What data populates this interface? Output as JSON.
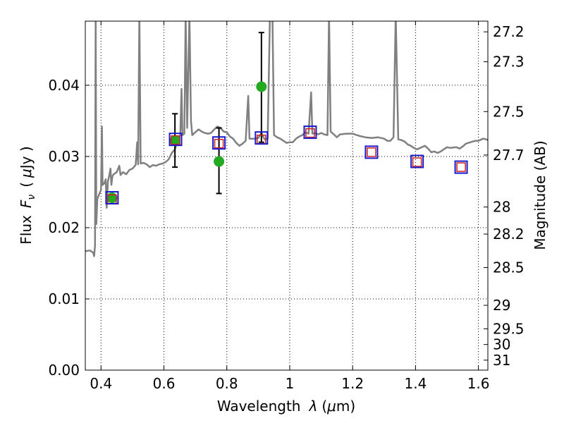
{
  "chart_data": {
    "type": "scatter",
    "xlabel": "Wavelength",
    "xlabel_symbol": "λ",
    "xlabel_unit_open": "(",
    "xlabel_unit_mu": "μ",
    "xlabel_unit_rest": "m)",
    "ylabel": "Flux",
    "ylabel_symbol": "F",
    "ylabel_sub": "ν",
    "ylabel_unit_open": "(",
    "ylabel_unit_mu": "μ",
    "ylabel_unit_rest": "Jy )",
    "y2label": "Magnitude (AB)",
    "xlim": [
      0.35,
      1.63
    ],
    "ylim": [
      0.0,
      0.049
    ],
    "grid": true,
    "grid_style": "dotted",
    "xticks": [
      0.4,
      0.6,
      0.8,
      1.0,
      1.2,
      1.4,
      1.6
    ],
    "xtick_labels": [
      "0.4",
      "0.6",
      "0.8",
      "1",
      "1.2",
      "1.4",
      "1.6"
    ],
    "yticks": [
      0.0,
      0.01,
      0.02,
      0.03,
      0.04
    ],
    "ytick_labels": [
      "0.00",
      "0.01",
      "0.02",
      "0.03",
      "0.04"
    ],
    "y2ticks": [
      {
        "label": "27.2",
        "flux": 0.0475
      },
      {
        "label": "27.3",
        "flux": 0.0433
      },
      {
        "label": "27.5",
        "flux": 0.0363
      },
      {
        "label": "27.7",
        "flux": 0.0302
      },
      {
        "label": "28",
        "flux": 0.0229
      },
      {
        "label": "28.2",
        "flux": 0.0191
      },
      {
        "label": "28.5",
        "flux": 0.0144
      },
      {
        "label": "29",
        "flux": 0.0091
      },
      {
        "label": "29.5",
        "flux": 0.0058
      },
      {
        "label": "30",
        "flux": 0.0036
      },
      {
        "label": "31",
        "flux": 0.0014
      }
    ],
    "series": [
      {
        "kind": "line",
        "color": "#808080",
        "points": [
          [
            0.35,
            0.0167
          ],
          [
            0.365,
            0.0168
          ],
          [
            0.375,
            0.0165
          ],
          [
            0.378,
            0.016
          ],
          [
            0.381,
            0.0175
          ],
          [
            0.383,
            0.05
          ],
          [
            0.385,
            0.0205
          ],
          [
            0.388,
            0.024
          ],
          [
            0.395,
            0.0248
          ],
          [
            0.4,
            0.0253
          ],
          [
            0.403,
            0.0342
          ],
          [
            0.405,
            0.026
          ],
          [
            0.41,
            0.0262
          ],
          [
            0.415,
            0.0268
          ],
          [
            0.418,
            0.0228
          ],
          [
            0.422,
            0.0265
          ],
          [
            0.426,
            0.0273
          ],
          [
            0.43,
            0.0283
          ],
          [
            0.433,
            0.026
          ],
          [
            0.436,
            0.0272
          ],
          [
            0.44,
            0.0275
          ],
          [
            0.45,
            0.0278
          ],
          [
            0.458,
            0.0287
          ],
          [
            0.462,
            0.0274
          ],
          [
            0.47,
            0.0278
          ],
          [
            0.48,
            0.0275
          ],
          [
            0.49,
            0.0281
          ],
          [
            0.5,
            0.0283
          ],
          [
            0.51,
            0.0288
          ],
          [
            0.515,
            0.032
          ],
          [
            0.518,
            0.0289
          ],
          [
            0.522,
            0.05
          ],
          [
            0.526,
            0.029
          ],
          [
            0.535,
            0.0291
          ],
          [
            0.545,
            0.0289
          ],
          [
            0.555,
            0.0285
          ],
          [
            0.565,
            0.0288
          ],
          [
            0.575,
            0.0287
          ],
          [
            0.585,
            0.0289
          ],
          [
            0.595,
            0.029
          ],
          [
            0.605,
            0.0292
          ],
          [
            0.615,
            0.0296
          ],
          [
            0.625,
            0.0305
          ],
          [
            0.635,
            0.031
          ],
          [
            0.645,
            0.0325
          ],
          [
            0.652,
            0.033
          ],
          [
            0.656,
            0.0395
          ],
          [
            0.659,
            0.033
          ],
          [
            0.665,
            0.0332
          ],
          [
            0.669,
            0.05
          ],
          [
            0.674,
            0.034
          ],
          [
            0.681,
            0.05
          ],
          [
            0.686,
            0.035
          ],
          [
            0.69,
            0.033
          ],
          [
            0.7,
            0.0334
          ],
          [
            0.71,
            0.0338
          ],
          [
            0.72,
            0.0335
          ],
          [
            0.73,
            0.0333
          ],
          [
            0.74,
            0.0332
          ],
          [
            0.75,
            0.0333
          ],
          [
            0.76,
            0.0338
          ],
          [
            0.77,
            0.0342
          ],
          [
            0.78,
            0.034
          ],
          [
            0.79,
            0.0335
          ],
          [
            0.8,
            0.0334
          ],
          [
            0.81,
            0.0328
          ],
          [
            0.82,
            0.0325
          ],
          [
            0.83,
            0.0319
          ],
          [
            0.84,
            0.0315
          ],
          [
            0.85,
            0.0318
          ],
          [
            0.86,
            0.0322
          ],
          [
            0.868,
            0.0385
          ],
          [
            0.872,
            0.0325
          ],
          [
            0.88,
            0.0325
          ],
          [
            0.89,
            0.0325
          ],
          [
            0.9,
            0.0326
          ],
          [
            0.91,
            0.0333
          ],
          [
            0.92,
            0.0324
          ],
          [
            0.93,
            0.0325
          ],
          [
            0.937,
            0.05
          ],
          [
            0.945,
            0.05
          ],
          [
            0.95,
            0.033
          ],
          [
            0.96,
            0.0327
          ],
          [
            0.97,
            0.0325
          ],
          [
            0.98,
            0.0322
          ],
          [
            0.99,
            0.0319
          ],
          [
            1.0,
            0.032
          ],
          [
            1.01,
            0.032
          ],
          [
            1.02,
            0.0325
          ],
          [
            1.03,
            0.0328
          ],
          [
            1.04,
            0.033
          ],
          [
            1.05,
            0.0334
          ],
          [
            1.06,
            0.0332
          ],
          [
            1.068,
            0.039
          ],
          [
            1.072,
            0.0332
          ],
          [
            1.08,
            0.0333
          ],
          [
            1.09,
            0.0331
          ],
          [
            1.1,
            0.0333
          ],
          [
            1.11,
            0.0331
          ],
          [
            1.12,
            0.033
          ],
          [
            1.125,
            0.05
          ],
          [
            1.13,
            0.0335
          ],
          [
            1.14,
            0.0331
          ],
          [
            1.15,
            0.0327
          ],
          [
            1.16,
            0.0331
          ],
          [
            1.18,
            0.0332
          ],
          [
            1.2,
            0.0332
          ],
          [
            1.22,
            0.0329
          ],
          [
            1.24,
            0.0327
          ],
          [
            1.26,
            0.0326
          ],
          [
            1.28,
            0.0327
          ],
          [
            1.3,
            0.0325
          ],
          [
            1.31,
            0.0322
          ],
          [
            1.32,
            0.0322
          ],
          [
            1.33,
            0.0327
          ],
          [
            1.337,
            0.05
          ],
          [
            1.345,
            0.0324
          ],
          [
            1.355,
            0.0323
          ],
          [
            1.365,
            0.0321
          ],
          [
            1.375,
            0.0317
          ],
          [
            1.385,
            0.0315
          ],
          [
            1.395,
            0.0312
          ],
          [
            1.405,
            0.031
          ],
          [
            1.415,
            0.0312
          ],
          [
            1.43,
            0.0315
          ],
          [
            1.44,
            0.0311
          ],
          [
            1.45,
            0.0306
          ],
          [
            1.46,
            0.0307
          ],
          [
            1.47,
            0.0305
          ],
          [
            1.48,
            0.0307
          ],
          [
            1.49,
            0.031
          ],
          [
            1.5,
            0.0313
          ],
          [
            1.51,
            0.0312
          ],
          [
            1.53,
            0.0313
          ],
          [
            1.54,
            0.0311
          ],
          [
            1.55,
            0.0314
          ],
          [
            1.56,
            0.0318
          ],
          [
            1.575,
            0.032
          ],
          [
            1.59,
            0.0322
          ],
          [
            1.6,
            0.0322
          ],
          [
            1.615,
            0.0325
          ],
          [
            1.625,
            0.0324
          ],
          [
            1.63,
            0.0323
          ]
        ]
      },
      {
        "kind": "points",
        "marker": "circle",
        "color": "#22aa22",
        "points": [
          {
            "x": 0.435,
            "y": 0.0242,
            "err": null
          },
          {
            "x": 0.635,
            "y": 0.0322,
            "err": [
              0.0285,
              0.036
            ]
          },
          {
            "x": 0.775,
            "y": 0.0293,
            "err": [
              0.0248,
              0.034
            ]
          },
          {
            "x": 0.91,
            "y": 0.0398,
            "err": [
              0.032,
              0.0474
            ]
          }
        ]
      },
      {
        "kind": "points",
        "marker": "square",
        "color": "#cc2222",
        "points": [
          {
            "x": 0.435,
            "y": 0.024
          },
          {
            "x": 0.637,
            "y": 0.0323
          },
          {
            "x": 0.775,
            "y": 0.0318
          },
          {
            "x": 0.91,
            "y": 0.0324
          },
          {
            "x": 1.065,
            "y": 0.0333
          },
          {
            "x": 1.26,
            "y": 0.0306
          },
          {
            "x": 1.405,
            "y": 0.0292
          },
          {
            "x": 1.545,
            "y": 0.0285
          }
        ]
      },
      {
        "kind": "points",
        "marker": "square",
        "color": "#1a1acc",
        "points": [
          {
            "x": 0.435,
            "y": 0.0242
          },
          {
            "x": 0.637,
            "y": 0.0324
          },
          {
            "x": 0.775,
            "y": 0.0319
          },
          {
            "x": 0.91,
            "y": 0.0326
          },
          {
            "x": 1.065,
            "y": 0.0334
          },
          {
            "x": 1.26,
            "y": 0.0306
          },
          {
            "x": 1.405,
            "y": 0.0293
          },
          {
            "x": 1.545,
            "y": 0.0285
          }
        ]
      }
    ]
  }
}
